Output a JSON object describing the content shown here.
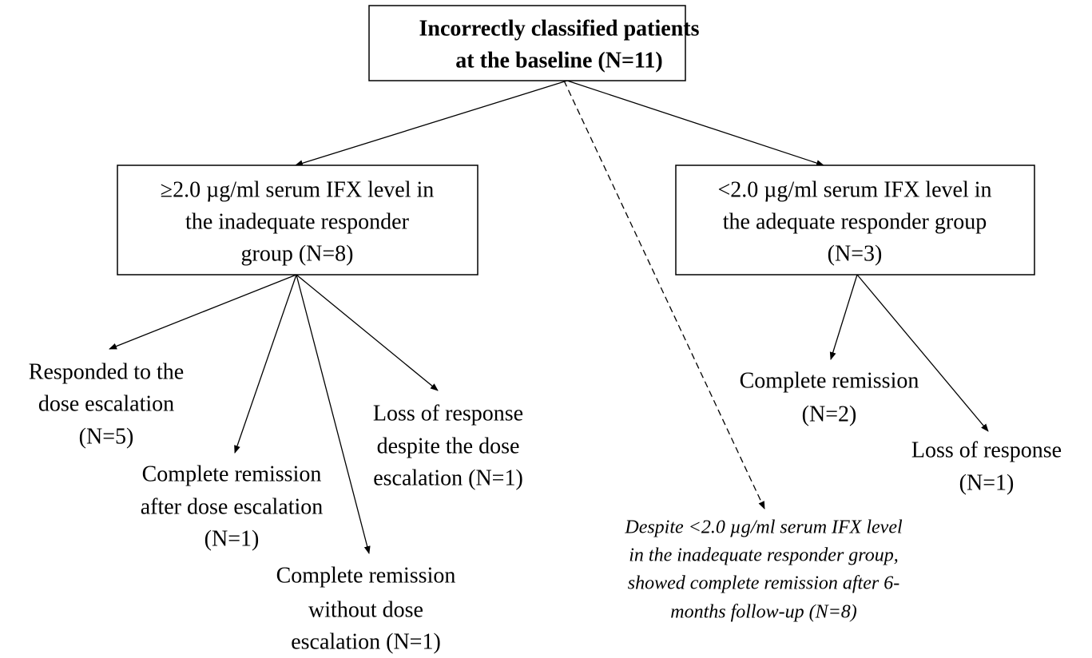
{
  "nodes": [
    {
      "lines": [
        "Incorrectly classified patients",
        "at the baseline (N=11)"
      ]
    },
    {
      "lines": [
        "≥2.0 µg/ml serum IFX level in",
        "the inadequate responder",
        "group (N=8)"
      ]
    },
    {
      "lines": [
        "<2.0 µg/ml serum IFX level in",
        "the adequate responder group",
        "(N=3)"
      ]
    },
    {
      "lines": [
        "Responded to the",
        "dose escalation",
        "(N=5)"
      ]
    },
    {
      "lines": [
        "Complete remission",
        "after dose escalation",
        "(N=1)"
      ]
    },
    {
      "lines": [
        "Complete remission",
        "without dose",
        "escalation (N=1)"
      ]
    },
    {
      "lines": [
        "Loss of response",
        "despite the dose",
        "escalation (N=1)"
      ]
    },
    {
      "lines": [
        "Complete remission",
        "(N=2)"
      ]
    },
    {
      "lines": [
        "Loss of response",
        "(N=1)"
      ]
    },
    {
      "lines": [
        "Despite <2.0 µg/ml serum IFX level",
        "in the inadequate responder group,",
        "showed complete remission after 6-",
        "months follow-up (N=8)"
      ]
    }
  ]
}
